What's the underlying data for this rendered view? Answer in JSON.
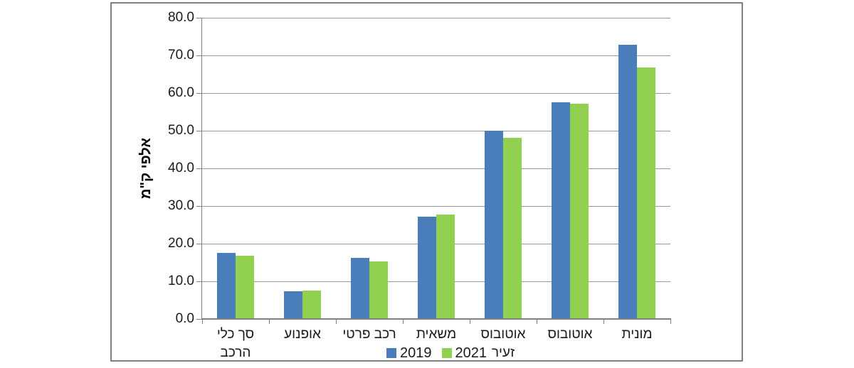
{
  "chart_data": {
    "type": "bar",
    "title": "",
    "ylabel": "אלפי ק\"מ",
    "xlabel": "",
    "ylim": [
      0,
      80
    ],
    "ytick_step": 10,
    "ytick_labels": [
      "0.0",
      "10.0",
      "20.0",
      "30.0",
      "40.0",
      "50.0",
      "60.0",
      "70.0",
      "80.0"
    ],
    "grid": true,
    "legend_position": "bottom-center",
    "categories": [
      "סך כלי הרכב",
      "אופנוע",
      "רכב פרטי",
      "משאית",
      "אוטובוס זעיר",
      "אוטובוס",
      "מונית"
    ],
    "category_lines": [
      [
        "סך כלי",
        "הרכב"
      ],
      [
        "אופנוע"
      ],
      [
        "רכב פרטי"
      ],
      [
        "משאית"
      ],
      [
        "אוטובוס",
        "זעיר"
      ],
      [
        "אוטובוס"
      ],
      [
        "מונית"
      ]
    ],
    "series": [
      {
        "name": "2019",
        "color": "#4A7EBB",
        "values": [
          17.5,
          7.3,
          16.2,
          27.1,
          50.0,
          57.6,
          72.9
        ]
      },
      {
        "name": "2021",
        "color": "#92D050",
        "values": [
          16.7,
          7.6,
          15.3,
          27.8,
          48.2,
          57.2,
          66.8
        ]
      }
    ]
  },
  "colors": {
    "gridline": "#999999",
    "axis": "#808080",
    "frame_border": "#808080",
    "text": "#1a1a1a",
    "background": "#ffffff"
  }
}
